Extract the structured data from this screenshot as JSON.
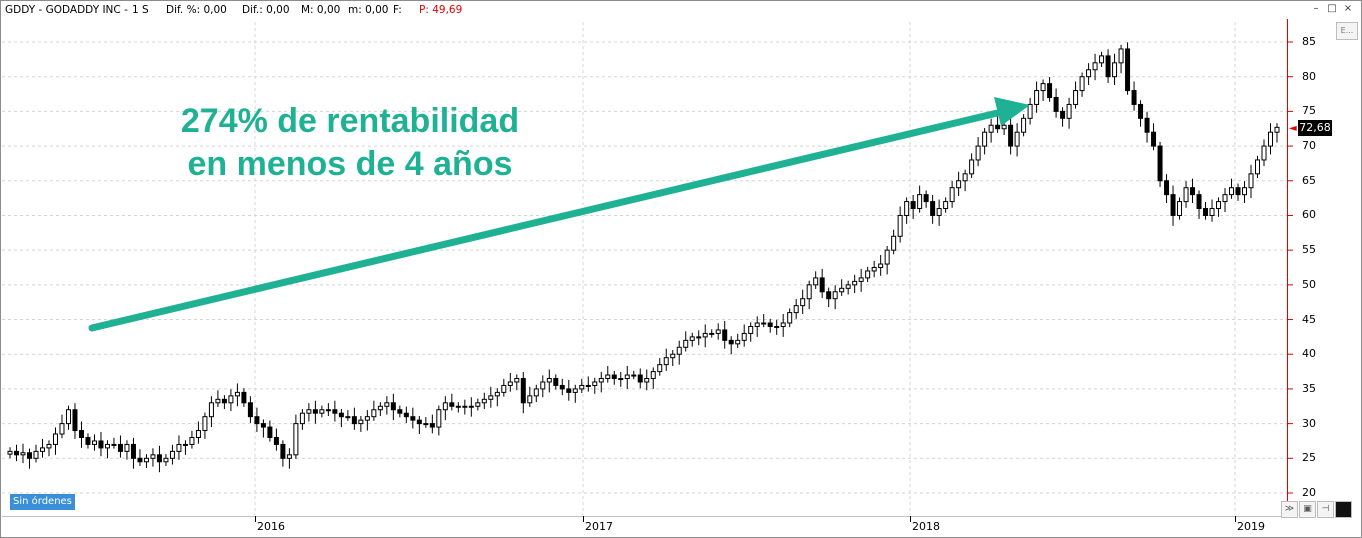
{
  "header": {
    "symbol": "GDDY - GODADDY INC -",
    "period": "1 S",
    "dif_pct": "Dif. %: 0,00",
    "dif": "Dif.: 0,00",
    "m_upper": "M: 0,00",
    "m_lower": "m: 0,00",
    "f": "F:",
    "p": "P: 49,69"
  },
  "window_buttons": [
    "–",
    "□",
    "×"
  ],
  "annotation": {
    "line1": "274% de rentabilidad",
    "line2": "en menos de 4 años",
    "color": "#1fb193"
  },
  "status_badge": "Sin órdenes",
  "last_price": "72,68",
  "price_axis": {
    "ticks": [
      "85",
      "80",
      "75",
      "70",
      "65",
      "60",
      "55",
      "50",
      "45",
      "40",
      "35",
      "30",
      "25",
      "20"
    ]
  },
  "time_axis": {
    "labels": [
      "2016",
      "2017",
      "2018",
      "2019"
    ]
  },
  "icons": {
    "panel": "expand-icon",
    "save": "save-icon",
    "pin": "pin-icon",
    "black-square": "fill-icon"
  },
  "chart_data": {
    "type": "candlestick",
    "interval": "weekly",
    "ylim": [
      20,
      87
    ],
    "x_labels": [
      "2016",
      "2017",
      "2018",
      "2019"
    ],
    "close_series": [
      26,
      25.5,
      25.8,
      25,
      26,
      26.5,
      27,
      28.5,
      30,
      32,
      29,
      28,
      27,
      27.5,
      26.5,
      27,
      27,
      26,
      27,
      25,
      24.5,
      25,
      25.5,
      24.5,
      25,
      26,
      27,
      27,
      28,
      29,
      31,
      33,
      33.5,
      33,
      34,
      34.5,
      33,
      31,
      30,
      29.5,
      28,
      27,
      25,
      25.5,
      30,
      31.5,
      32,
      31.5,
      32,
      32,
      31.5,
      31,
      31,
      30,
      30.5,
      31,
      32,
      32.5,
      33,
      32,
      31.5,
      31,
      30.5,
      30,
      30,
      29.5,
      32,
      33,
      32.5,
      32.5,
      32.5,
      32.5,
      33,
      33.5,
      34,
      34.5,
      35.5,
      36,
      36.5,
      33,
      34,
      35,
      36,
      36.5,
      35.5,
      35,
      34.5,
      35,
      35.5,
      35.5,
      36,
      36.5,
      37,
      36.5,
      36.5,
      37,
      37,
      36,
      36.5,
      37.5,
      38.5,
      39.5,
      40,
      41,
      42,
      42.5,
      42.5,
      43,
      43,
      43.5,
      42,
      41.5,
      42,
      43,
      44,
      44.5,
      44.5,
      44,
      44,
      44.5,
      46,
      47,
      48,
      50,
      51,
      49,
      48,
      49,
      49.5,
      50,
      50.5,
      51,
      52,
      52.5,
      53,
      55,
      57,
      60,
      62,
      61,
      63,
      62,
      60,
      61,
      62,
      64,
      65,
      66,
      68,
      70,
      72,
      73,
      72.5,
      73,
      70,
      72,
      74,
      76,
      78,
      79,
      77,
      75,
      74,
      76,
      78,
      80,
      81,
      82,
      83,
      80,
      82,
      84,
      78,
      76,
      74,
      72,
      70,
      65,
      63,
      60,
      62,
      64,
      63,
      61,
      60,
      61,
      62,
      63,
      64,
      63,
      64,
      66,
      68,
      70,
      72,
      72.7
    ]
  }
}
